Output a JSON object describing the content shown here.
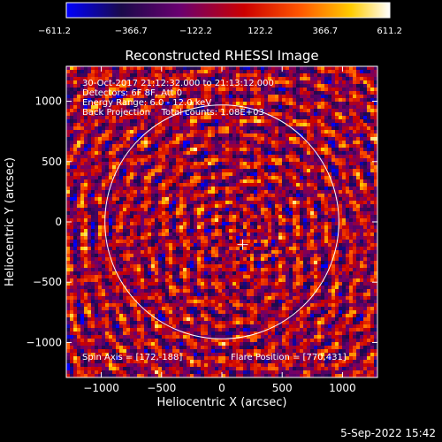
{
  "chart_data": {
    "type": "heatmap",
    "title": "Reconstructed RHESSI Image",
    "xlabel": "Heliocentric X (arcsec)",
    "ylabel": "Heliocentric Y (arcsec)",
    "xlim": [
      -1290,
      1290
    ],
    "ylim": [
      -1290,
      1290
    ],
    "xticks": [
      -1000,
      -500,
      0,
      500,
      1000
    ],
    "yticks": [
      -1000,
      -500,
      0,
      500,
      1000
    ],
    "colorbar": {
      "min": -611.2,
      "max": 611.2,
      "tick_labels": [
        "−611.2",
        "−366.7",
        "−122.2",
        "122.2",
        "366.7",
        "611.2"
      ],
      "colors": [
        "#0000ff",
        "#1a0a4a",
        "#6a0070",
        "#cc0000",
        "#ff5500",
        "#ffcc00",
        "#ffffff"
      ]
    },
    "info_lines": [
      "30-Oct-2017 21:12:32.000 to 21:13:12.000",
      "Detectors: 6F 8F, Att 0",
      "Energy Range: 6.0 - 12.0 keV",
      "Back Projection    Total counts: 1.08E+03"
    ],
    "spin_axis_label": "Spin Axis = [172,-188]",
    "flare_position_label": "Flare Position = [770,431]",
    "spin_axis": [
      172,
      -188
    ],
    "solar_limb_radius_arcsec": 970,
    "grid": false
  },
  "footer": {
    "timestamp": "5-Sep-2022 15:42"
  }
}
